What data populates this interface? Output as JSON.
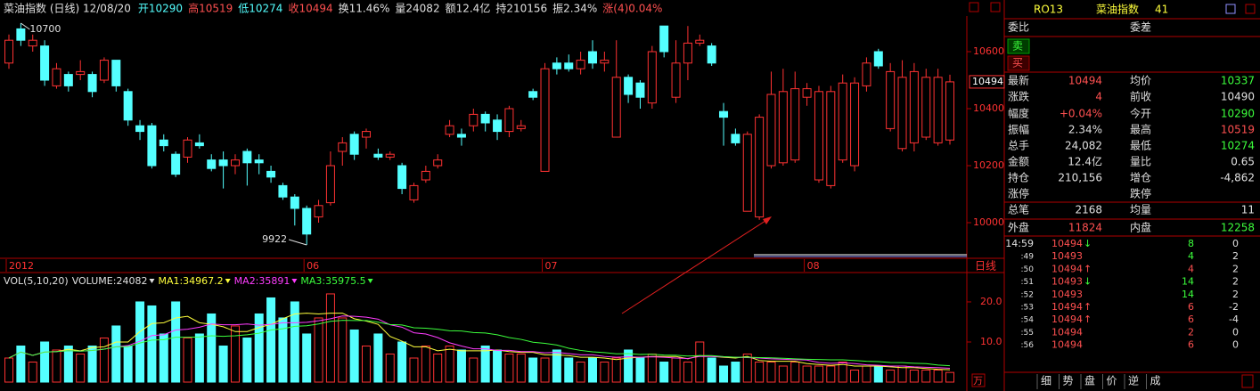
{
  "header": {
    "title": "菜油指数 (日线) 12/08/20",
    "items": [
      {
        "text": "开10290",
        "color": "#54ffff"
      },
      {
        "text": "高10519",
        "color": "#ff5050"
      },
      {
        "text": "低10274",
        "color": "#54ffff"
      },
      {
        "text": "收10494",
        "color": "#ff5050"
      },
      {
        "text": "换11.46%",
        "color": "#e0e0e0"
      },
      {
        "text": "量24082",
        "color": "#e0e0e0"
      },
      {
        "text": "额12.4亿",
        "color": "#e0e0e0"
      },
      {
        "text": "持210156",
        "color": "#e0e0e0"
      },
      {
        "text": "振2.34%",
        "color": "#e0e0e0"
      },
      {
        "text": "涨(4)0.04%",
        "color": "#ff5050"
      }
    ]
  },
  "chart_data": [
    {
      "type": "candlestick",
      "period_label": "日线",
      "last_price": 10494,
      "categories": [
        "2012",
        null,
        null,
        null,
        null,
        null,
        null,
        null,
        null,
        null,
        null,
        null,
        null,
        null,
        null,
        null,
        null,
        null,
        null,
        null,
        null,
        null,
        null,
        null,
        null,
        "06",
        null,
        null,
        null,
        null,
        null,
        null,
        null,
        null,
        null,
        null,
        null,
        null,
        null,
        null,
        null,
        null,
        null,
        null,
        null,
        "07",
        null,
        null,
        null,
        null,
        null,
        null,
        null,
        null,
        null,
        null,
        null,
        null,
        null,
        null,
        null,
        null,
        null,
        null,
        null,
        null,
        null,
        "08",
        null,
        null,
        null,
        null,
        null,
        null,
        null,
        null,
        null,
        null,
        null,
        null
      ],
      "open": [
        10560,
        10680,
        10620,
        10620,
        10480,
        10520,
        10520,
        10520,
        10500,
        10570,
        10460,
        10340,
        10340,
        10290,
        10240,
        10230,
        10280,
        10220,
        10220,
        10200,
        10250,
        10220,
        10180,
        10130,
        10090,
        10050,
        10020,
        10070,
        10250,
        10310,
        10300,
        10240,
        10230,
        10200,
        10080,
        10150,
        10200,
        10310,
        10310,
        10340,
        10380,
        10360,
        10320,
        10330,
        10460,
        10180,
        10560,
        10560,
        10540,
        10600,
        10560,
        10300,
        10510,
        10490,
        10420,
        10690,
        10440,
        10560,
        10630,
        10620,
        10390,
        10310,
        10040,
        10020,
        10200,
        10210,
        10220,
        10440,
        10150,
        10130,
        10220,
        10200,
        10480,
        10600,
        10330,
        10260,
        10280,
        10300,
        10280,
        10290
      ],
      "high": [
        10660,
        10700,
        10660,
        10640,
        10560,
        10530,
        10570,
        10530,
        10580,
        10570,
        10470,
        10360,
        10350,
        10310,
        10250,
        10300,
        10310,
        10240,
        10250,
        10240,
        10260,
        10240,
        10200,
        10140,
        10100,
        10060,
        10080,
        10250,
        10300,
        10320,
        10330,
        10260,
        10250,
        10210,
        10140,
        10200,
        10240,
        10360,
        10330,
        10400,
        10390,
        10380,
        10410,
        10360,
        10470,
        10560,
        10580,
        10590,
        10600,
        10640,
        10600,
        10640,
        10520,
        10500,
        10620,
        10690,
        10640,
        10690,
        10660,
        10630,
        10420,
        10330,
        10320,
        10380,
        10530,
        10540,
        10530,
        10490,
        10480,
        10480,
        10520,
        10510,
        10580,
        10610,
        10560,
        10570,
        10560,
        10540,
        10540,
        10519
      ],
      "low": [
        10540,
        10620,
        10600,
        10480,
        10470,
        10460,
        10500,
        10440,
        10490,
        10460,
        10340,
        10290,
        10190,
        10250,
        10160,
        10210,
        10260,
        10180,
        10120,
        10170,
        10130,
        10170,
        10140,
        10080,
        9990,
        9922,
        10000,
        10060,
        10200,
        10220,
        10260,
        10220,
        10220,
        10100,
        10070,
        10140,
        10190,
        10300,
        10270,
        10320,
        10320,
        10290,
        10300,
        10320,
        10430,
        10180,
        10520,
        10530,
        10520,
        10540,
        10530,
        10300,
        10420,
        10400,
        10400,
        10580,
        10420,
        10500,
        10620,
        10550,
        10270,
        10270,
        10040,
        10010,
        10190,
        10200,
        10210,
        10410,
        10140,
        10120,
        10210,
        10180,
        10460,
        10540,
        10320,
        10250,
        10250,
        10290,
        10270,
        10274
      ],
      "close": [
        10640,
        10640,
        10640,
        10500,
        10540,
        10480,
        10530,
        10460,
        10570,
        10480,
        10360,
        10320,
        10200,
        10270,
        10170,
        10290,
        10270,
        10190,
        10200,
        10220,
        10210,
        10210,
        10160,
        10090,
        10050,
        9960,
        10060,
        10200,
        10280,
        10240,
        10320,
        10230,
        10240,
        10120,
        10130,
        10180,
        10220,
        10340,
        10300,
        10380,
        10350,
        10320,
        10400,
        10340,
        10440,
        10540,
        10540,
        10540,
        10570,
        10560,
        10570,
        10510,
        10450,
        10440,
        10600,
        10600,
        10560,
        10630,
        10640,
        10560,
        10370,
        10280,
        10310,
        10370,
        10450,
        10460,
        10470,
        10470,
        10460,
        10460,
        10490,
        10490,
        10560,
        10550,
        10530,
        10510,
        10530,
        10510,
        10510,
        10494
      ],
      "annotations": [
        10700,
        9922
      ],
      "ylim": [
        9875,
        10725
      ],
      "yticks": [
        10000,
        10200,
        10400,
        10600
      ],
      "up_color": "#ff3232",
      "down_color": "#54ffff"
    },
    {
      "type": "bar",
      "title": "VOL(5,10,20)",
      "legend": "VOLUME:24082",
      "unit": "万",
      "values": [
        6,
        9,
        5,
        10,
        8,
        9,
        7,
        9,
        11,
        14,
        9,
        20,
        19,
        12,
        20,
        11,
        12,
        17,
        9,
        14,
        11,
        17,
        21,
        16,
        20,
        12,
        16,
        22,
        16,
        13,
        9,
        12,
        7,
        10,
        6,
        9,
        7,
        9,
        8,
        6,
        9,
        8,
        7,
        7,
        6,
        6,
        8,
        6,
        5,
        6,
        5,
        6,
        8,
        6,
        7,
        5,
        6,
        5,
        10,
        6,
        4,
        5,
        7,
        5,
        5,
        4,
        5,
        4,
        4,
        4,
        5,
        3,
        4,
        4,
        3,
        4,
        3,
        3,
        3,
        2.41
      ],
      "ma": [
        {
          "label": "MA1:34967.2",
          "period": 5,
          "color": "#ffff3c"
        },
        {
          "label": "MA2:35891",
          "period": 10,
          "color": "#ff3cff"
        },
        {
          "label": "MA3:35975.5",
          "period": 20,
          "color": "#3cff3c"
        }
      ],
      "ylim": [
        0,
        27.1
      ],
      "yticks": [
        {
          "value": 20,
          "label": "20.0"
        },
        {
          "value": 10,
          "label": "10.0"
        }
      ]
    }
  ],
  "quote": {
    "code": "RO13",
    "name": "菜油指数",
    "num": "41",
    "sell": "卖",
    "buy": "买",
    "rows": [
      {
        "l1": "委比",
        "l2": "委差"
      },
      {
        "l1": "最新",
        "v1": "10494",
        "c1": "#ff5050",
        "l2": "均价",
        "v2": "10337",
        "c2": "#3cff3c"
      },
      {
        "l1": "涨跌",
        "v1": "4",
        "c1": "#ff5050",
        "l2": "前收",
        "v2": "10490",
        "c2": "#e0e0e0"
      },
      {
        "l1": "幅度",
        "v1": "+0.04%",
        "c1": "#ff5050",
        "l2": "今开",
        "v2": "10290",
        "c2": "#3cff3c"
      },
      {
        "l1": "振幅",
        "v1": "2.34%",
        "c1": "#e0e0e0",
        "l2": "最高",
        "v2": "10519",
        "c2": "#ff5050"
      },
      {
        "l1": "总手",
        "v1": "24,082",
        "c1": "#e0e0e0",
        "l2": "最低",
        "v2": "10274",
        "c2": "#3cff3c"
      },
      {
        "l1": "金额",
        "v1": "12.4亿",
        "c1": "#e0e0e0",
        "l2": "量比",
        "v2": "0.65",
        "c2": "#e0e0e0"
      },
      {
        "l1": "持仓",
        "v1": "210,156",
        "c1": "#e0e0e0",
        "l2": "增仓",
        "v2": "-4,862",
        "c2": "#e0e0e0"
      },
      {
        "l1": "涨停",
        "l2": "跌停"
      },
      {
        "l1": "总笔",
        "v1": "2168",
        "c1": "#e0e0e0",
        "l2": "均量",
        "v2": "11",
        "c2": "#e0e0e0"
      },
      {
        "l1": "外盘",
        "v1": "11824",
        "c1": "#ff5050",
        "l2": "内盘",
        "v2": "12258",
        "c2": "#3cff3c"
      }
    ],
    "ticks": [
      {
        "time": "14:59",
        "price": "10494",
        "dir": "↓",
        "vol": "8",
        "oi": "0",
        "color": "#3cff3c"
      },
      {
        "time": ":49",
        "price": "10493",
        "vol": "4",
        "oi": "2",
        "color": "#3cff3c"
      },
      {
        "time": ":50",
        "price": "10494",
        "dir": "↑",
        "vol": "4",
        "oi": "2",
        "color": "#ff5050"
      },
      {
        "time": ":51",
        "price": "10493",
        "dir": "↓",
        "vol": "14",
        "oi": "2",
        "color": "#3cff3c"
      },
      {
        "time": ":52",
        "price": "10493",
        "vol": "14",
        "oi": "2",
        "color": "#3cff3c"
      },
      {
        "time": ":53",
        "price": "10494",
        "dir": "↑",
        "vol": "6",
        "oi": "-2",
        "color": "#ff5050"
      },
      {
        "time": ":54",
        "price": "10494",
        "dir": "↑",
        "vol": "6",
        "oi": "-4",
        "color": "#ff5050"
      },
      {
        "time": ":55",
        "price": "10494",
        "vol": "2",
        "oi": "0",
        "color": "#ff5050"
      },
      {
        "time": ":56",
        "price": "10494",
        "vol": "6",
        "oi": "0",
        "color": "#ff5050"
      }
    ],
    "tabs": [
      "细",
      "势",
      "盘",
      "价",
      "逆",
      "成"
    ]
  }
}
